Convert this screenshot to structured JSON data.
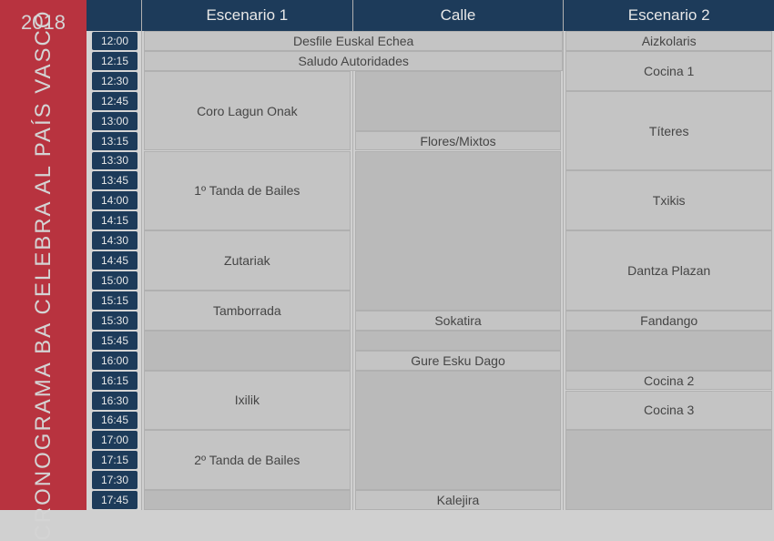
{
  "type": "schedule-grid",
  "sidebar": {
    "year": "2018",
    "title": "CRONOGRAMA BA CELEBRA AL PAÍS VASCO",
    "bg_color": "#b8333f",
    "text_color": "#d4d4d4"
  },
  "header": {
    "bg_color": "#1d3b5a",
    "text_color": "#e8e8e8",
    "columns": [
      "Escenario 1",
      "Calle",
      "Escenario 2"
    ]
  },
  "time_cell": {
    "bg_color": "#1d3b5a",
    "text_color": "#e8e8e8"
  },
  "background_color": "#d4d4d4",
  "event_bg_color": "#c4c4c4",
  "empty_bg_color": "#bababa",
  "border_color": "#b0b0b0",
  "event_text_color": "#454545",
  "slots": [
    "12:00",
    "12:15",
    "12:30",
    "12:45",
    "13:00",
    "13:15",
    "13:30",
    "13:45",
    "14:00",
    "14:15",
    "14:30",
    "14:45",
    "15:00",
    "15:15",
    "15:30",
    "15:45",
    "16:00",
    "16:15",
    "16:30",
    "16:45",
    "17:00",
    "17:15",
    "17:30",
    "17:45"
  ],
  "row_count": 24,
  "events_col1": [
    {
      "label": "Desfile Euskal Echea",
      "start": 0,
      "span": 1,
      "wide": true
    },
    {
      "label": "Saludo Autoridades",
      "start": 1,
      "span": 1,
      "wide": true
    },
    {
      "label": "Coro Lagun Onak",
      "start": 2,
      "span": 4
    },
    {
      "label": "1º Tanda de Bailes",
      "start": 6,
      "span": 4
    },
    {
      "label": "Zutariak",
      "start": 10,
      "span": 3
    },
    {
      "label": "Tamborrada",
      "start": 13,
      "span": 2
    },
    {
      "label": "Ixilik",
      "start": 17,
      "span": 3
    },
    {
      "label": "2º Tanda de Bailes",
      "start": 20,
      "span": 3
    }
  ],
  "empty_col1": [
    {
      "start": 15,
      "span": 2
    },
    {
      "start": 23,
      "span": 1
    }
  ],
  "events_col2": [
    {
      "label": "Flores/Mixtos",
      "start": 5,
      "span": 1
    },
    {
      "label": "Sokatira",
      "start": 14,
      "span": 1
    },
    {
      "label": "Gure Esku Dago",
      "start": 16,
      "span": 1
    },
    {
      "label": "Kalejira",
      "start": 23,
      "span": 1
    }
  ],
  "empty_col2": [
    {
      "start": 2,
      "span": 3
    },
    {
      "start": 6,
      "span": 8
    },
    {
      "start": 15,
      "span": 1
    },
    {
      "start": 17,
      "span": 6
    }
  ],
  "events_col3": [
    {
      "label": "Aizkolaris",
      "start": 0,
      "span": 1
    },
    {
      "label": "Cocina 1",
      "start": 1,
      "span": 2
    },
    {
      "label": "Títeres",
      "start": 3,
      "span": 4
    },
    {
      "label": "Txikis",
      "start": 7,
      "span": 3
    },
    {
      "label": "Dantza Plazan",
      "start": 10,
      "span": 4
    },
    {
      "label": "Fandango",
      "start": 14,
      "span": 1
    },
    {
      "label": "Cocina 2",
      "start": 17,
      "span": 1
    },
    {
      "label": "Cocina 3",
      "start": 18,
      "span": 2
    }
  ],
  "empty_col3": [
    {
      "start": 15,
      "span": 2
    },
    {
      "start": 20,
      "span": 4
    }
  ]
}
